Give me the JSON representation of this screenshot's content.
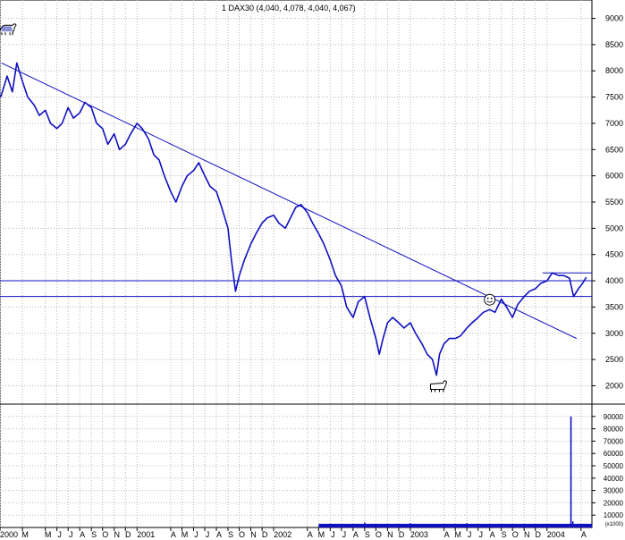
{
  "title": "1 DAX30 (4,040, 4,078, 4,040, 4,067)",
  "colors": {
    "price_line": "#1010c0",
    "trend_lines": "#1010c0",
    "volume_bars": "#1010c0",
    "grid": "#b8b8b8",
    "background": "#ffffff",
    "axis_text": "#000000"
  },
  "icons": [
    "bull-icon",
    "smiley-icon",
    "bear-icon"
  ],
  "chart_data": [
    {
      "type": "line",
      "name": "price",
      "grid": true,
      "ylim": [
        1650,
        9350
      ],
      "y_ticks": [
        "9000",
        "8500",
        "8000",
        "7500",
        "7000",
        "6500",
        "6000",
        "5500",
        "5000",
        "4500",
        "4000",
        "3500",
        "3000",
        "2500",
        "2000"
      ],
      "xlim": [
        "2000-01-01",
        "2004-04-30"
      ],
      "x_ticks": [
        {
          "date": "2000-01-01",
          "label": "2000",
          "kind": "year"
        },
        {
          "date": "2000-03-01",
          "label": "M"
        },
        {
          "date": "2000-05-01",
          "label": "M"
        },
        {
          "date": "2000-06-01",
          "label": "J"
        },
        {
          "date": "2000-07-01",
          "label": "J"
        },
        {
          "date": "2000-08-01",
          "label": "A"
        },
        {
          "date": "2000-09-01",
          "label": "S"
        },
        {
          "date": "2000-10-01",
          "label": "O"
        },
        {
          "date": "2000-11-01",
          "label": "N"
        },
        {
          "date": "2000-12-01",
          "label": "D"
        },
        {
          "date": "2001-01-01",
          "label": "2001",
          "kind": "year"
        },
        {
          "date": "2001-04-01",
          "label": "A"
        },
        {
          "date": "2001-05-01",
          "label": "M"
        },
        {
          "date": "2001-06-01",
          "label": "J"
        },
        {
          "date": "2001-07-01",
          "label": "J"
        },
        {
          "date": "2001-08-01",
          "label": "A"
        },
        {
          "date": "2001-09-01",
          "label": "S"
        },
        {
          "date": "2001-10-01",
          "label": "O"
        },
        {
          "date": "2001-11-01",
          "label": "N"
        },
        {
          "date": "2001-12-01",
          "label": "D"
        },
        {
          "date": "2002-01-01",
          "label": "2002",
          "kind": "year"
        },
        {
          "date": "2002-04-01",
          "label": "A"
        },
        {
          "date": "2002-05-01",
          "label": "M"
        },
        {
          "date": "2002-06-01",
          "label": "J"
        },
        {
          "date": "2002-07-01",
          "label": "J"
        },
        {
          "date": "2002-08-01",
          "label": "A"
        },
        {
          "date": "2002-09-01",
          "label": "S"
        },
        {
          "date": "2002-10-01",
          "label": "O"
        },
        {
          "date": "2002-11-01",
          "label": "N"
        },
        {
          "date": "2002-12-01",
          "label": "D"
        },
        {
          "date": "2003-01-01",
          "label": "2003",
          "kind": "year"
        },
        {
          "date": "2003-04-01",
          "label": "A"
        },
        {
          "date": "2003-05-01",
          "label": "M"
        },
        {
          "date": "2003-06-01",
          "label": "J"
        },
        {
          "date": "2003-07-01",
          "label": "J"
        },
        {
          "date": "2003-08-01",
          "label": "A"
        },
        {
          "date": "2003-09-01",
          "label": "S"
        },
        {
          "date": "2003-10-01",
          "label": "O"
        },
        {
          "date": "2003-11-01",
          "label": "N"
        },
        {
          "date": "2003-12-01",
          "label": "D"
        },
        {
          "date": "2004-01-01",
          "label": "2004",
          "kind": "year"
        },
        {
          "date": "2004-04-01",
          "label": "A"
        }
      ],
      "points": [
        [
          "2000-01-03",
          7500
        ],
        [
          "2000-01-20",
          7900
        ],
        [
          "2000-02-03",
          7600
        ],
        [
          "2000-02-15",
          8150
        ],
        [
          "2000-03-01",
          7800
        ],
        [
          "2000-03-15",
          7500
        ],
        [
          "2000-04-01",
          7350
        ],
        [
          "2000-04-15",
          7150
        ],
        [
          "2000-05-01",
          7250
        ],
        [
          "2000-05-15",
          7000
        ],
        [
          "2000-06-01",
          6900
        ],
        [
          "2000-06-15",
          7000
        ],
        [
          "2000-07-01",
          7300
        ],
        [
          "2000-07-15",
          7100
        ],
        [
          "2000-08-01",
          7200
        ],
        [
          "2000-08-15",
          7400
        ],
        [
          "2000-09-01",
          7300
        ],
        [
          "2000-09-15",
          7000
        ],
        [
          "2000-10-01",
          6900
        ],
        [
          "2000-10-15",
          6600
        ],
        [
          "2000-11-01",
          6800
        ],
        [
          "2000-11-15",
          6500
        ],
        [
          "2000-12-01",
          6600
        ],
        [
          "2000-12-15",
          6800
        ],
        [
          "2001-01-01",
          7000
        ],
        [
          "2001-01-15",
          6900
        ],
        [
          "2001-02-01",
          6700
        ],
        [
          "2001-02-15",
          6400
        ],
        [
          "2001-03-01",
          6300
        ],
        [
          "2001-03-15",
          6000
        ],
        [
          "2001-04-01",
          5700
        ],
        [
          "2001-04-15",
          5500
        ],
        [
          "2001-05-01",
          5800
        ],
        [
          "2001-05-15",
          6000
        ],
        [
          "2001-06-01",
          6100
        ],
        [
          "2001-06-15",
          6250
        ],
        [
          "2001-07-01",
          6000
        ],
        [
          "2001-07-15",
          5800
        ],
        [
          "2001-08-01",
          5700
        ],
        [
          "2001-08-15",
          5400
        ],
        [
          "2001-09-01",
          5000
        ],
        [
          "2001-09-10",
          4400
        ],
        [
          "2001-09-21",
          3800
        ],
        [
          "2001-10-01",
          4100
        ],
        [
          "2001-10-15",
          4400
        ],
        [
          "2001-11-01",
          4700
        ],
        [
          "2001-11-15",
          4900
        ],
        [
          "2001-12-01",
          5100
        ],
        [
          "2001-12-15",
          5200
        ],
        [
          "2002-01-01",
          5250
        ],
        [
          "2002-01-15",
          5100
        ],
        [
          "2002-02-01",
          5000
        ],
        [
          "2002-02-15",
          5200
        ],
        [
          "2002-03-01",
          5400
        ],
        [
          "2002-03-15",
          5450
        ],
        [
          "2002-04-01",
          5300
        ],
        [
          "2002-04-15",
          5100
        ],
        [
          "2002-05-01",
          4900
        ],
        [
          "2002-05-15",
          4700
        ],
        [
          "2002-06-01",
          4400
        ],
        [
          "2002-06-15",
          4100
        ],
        [
          "2002-07-01",
          3900
        ],
        [
          "2002-07-15",
          3500
        ],
        [
          "2002-08-01",
          3300
        ],
        [
          "2002-08-15",
          3600
        ],
        [
          "2002-09-01",
          3700
        ],
        [
          "2002-09-15",
          3300
        ],
        [
          "2002-10-01",
          2900
        ],
        [
          "2002-10-10",
          2600
        ],
        [
          "2002-10-20",
          2900
        ],
        [
          "2002-11-01",
          3200
        ],
        [
          "2002-11-15",
          3300
        ],
        [
          "2002-12-01",
          3200
        ],
        [
          "2002-12-15",
          3100
        ],
        [
          "2003-01-01",
          3200
        ],
        [
          "2003-01-15",
          3000
        ],
        [
          "2003-02-01",
          2800
        ],
        [
          "2003-02-15",
          2600
        ],
        [
          "2003-03-01",
          2500
        ],
        [
          "2003-03-12",
          2200
        ],
        [
          "2003-03-20",
          2600
        ],
        [
          "2003-04-01",
          2800
        ],
        [
          "2003-04-15",
          2900
        ],
        [
          "2003-05-01",
          2900
        ],
        [
          "2003-05-15",
          2950
        ],
        [
          "2003-06-01",
          3100
        ],
        [
          "2003-06-15",
          3200
        ],
        [
          "2003-07-01",
          3300
        ],
        [
          "2003-07-15",
          3400
        ],
        [
          "2003-08-01",
          3450
        ],
        [
          "2003-08-15",
          3400
        ],
        [
          "2003-09-01",
          3650
        ],
        [
          "2003-09-15",
          3500
        ],
        [
          "2003-10-01",
          3300
        ],
        [
          "2003-10-15",
          3550
        ],
        [
          "2003-11-01",
          3700
        ],
        [
          "2003-11-15",
          3800
        ],
        [
          "2003-12-01",
          3850
        ],
        [
          "2003-12-15",
          3950
        ],
        [
          "2004-01-01",
          4000
        ],
        [
          "2004-01-15",
          4150
        ],
        [
          "2004-02-01",
          4100
        ],
        [
          "2004-02-15",
          4100
        ],
        [
          "2004-03-01",
          4050
        ],
        [
          "2004-03-12",
          3700
        ],
        [
          "2004-03-25",
          3850
        ],
        [
          "2004-04-05",
          3950
        ],
        [
          "2004-04-15",
          4067
        ]
      ],
      "trendlines": [
        {
          "from": [
            "2000-01-05",
            8150
          ],
          "to": [
            "2004-03-20",
            2900
          ]
        }
      ],
      "hlines": [
        4000,
        3700,
        4150
      ],
      "annotations": [
        {
          "icon": "bull-icon",
          "at": [
            "2000-01-20",
            8800
          ]
        },
        {
          "icon": "smiley-icon",
          "at": [
            "2003-08-01",
            3640
          ]
        },
        {
          "icon": "bear-icon",
          "at": [
            "2003-03-15",
            2000
          ]
        }
      ]
    },
    {
      "type": "bar",
      "name": "volume",
      "grid": true,
      "ylim": [
        0,
        100000
      ],
      "y_ticks": [
        "90000",
        "80000",
        "70000",
        "60000",
        "50000",
        "40000",
        "30000",
        "20000",
        "10000"
      ],
      "unit_label": "(x1000)",
      "bars": [
        [
          "2002-06-01",
          3000
        ],
        [
          "2002-09-01",
          4000
        ],
        [
          "2003-01-01",
          3500
        ],
        [
          "2003-06-01",
          3500
        ],
        [
          "2003-09-01",
          2500
        ],
        [
          "2003-12-01",
          2500
        ],
        [
          "2004-03-05",
          90000
        ],
        [
          "2004-03-10",
          5000
        ],
        [
          "2004-04-10",
          3000
        ]
      ]
    }
  ]
}
